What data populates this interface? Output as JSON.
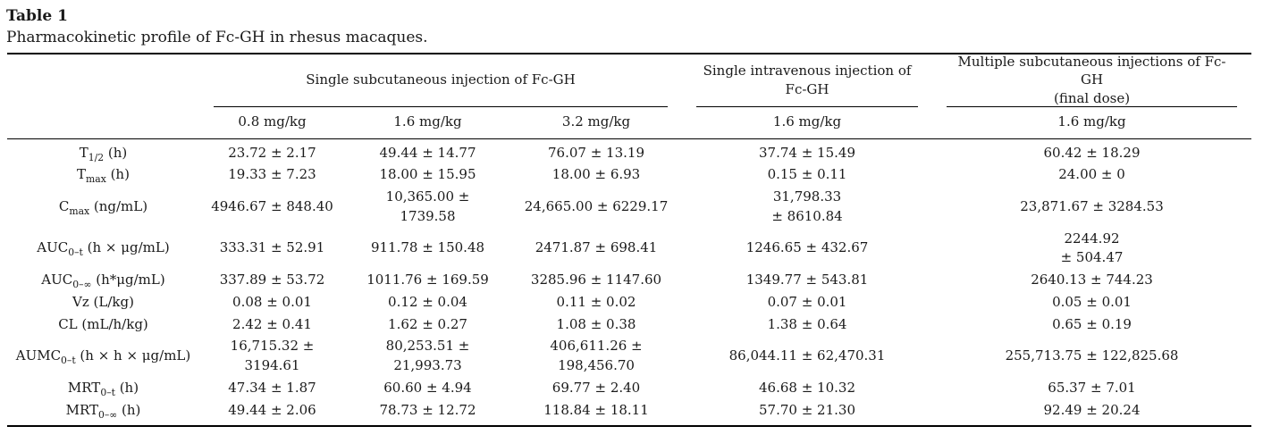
{
  "caption": {
    "label": "Table 1",
    "text": "Pharmacokinetic profile of Fc-GH in rhesus macaques."
  },
  "table": {
    "groups": [
      {
        "title": "Single subcutaneous injection of Fc-GH",
        "span": 3
      },
      {
        "title": "Single intravenous injection of\nFc-GH",
        "span": 1
      },
      {
        "title": "Multiple subcutaneous injections of Fc-GH\n(final dose)",
        "span": 1
      }
    ],
    "dose_headers": [
      "0.8 mg/kg",
      "1.6 mg/kg",
      "3.2 mg/kg",
      "1.6 mg/kg",
      "1.6 mg/kg"
    ],
    "rows": [
      {
        "label": {
          "pre": "T",
          "sub": "1/2",
          "post": " (h)"
        },
        "values": [
          "23.72 ± 2.17",
          "49.44 ± 14.77",
          "76.07 ± 13.19",
          "37.74 ± 15.49",
          "60.42 ± 18.29"
        ]
      },
      {
        "label": {
          "pre": "T",
          "sub": "max",
          "post": " (h)"
        },
        "values": [
          "19.33 ± 7.23",
          "18.00 ± 15.95",
          "18.00 ± 6.93",
          "0.15 ± 0.11",
          "24.00 ± 0"
        ]
      },
      {
        "label": {
          "pre": "C",
          "sub": "max",
          "post": " (ng/mL)"
        },
        "values": [
          "4946.67 ± 848.40",
          "10,365.00 ±\n1739.58",
          "24,665.00 ± 6229.17",
          "31,798.33\n± 8610.84",
          "23,871.67 ± 3284.53"
        ]
      },
      {
        "label": {
          "pre": "AUC",
          "sub": "0–t",
          "post": " (h × μg/mL)"
        },
        "values": [
          "333.31 ± 52.91",
          "911.78 ± 150.48",
          "2471.87 ± 698.41",
          "1246.65 ± 432.67",
          "2244.92\n± 504.47"
        ]
      },
      {
        "label": {
          "pre": "AUC",
          "sub": "0–∞",
          "post": " (h*μg/mL)"
        },
        "values": [
          "337.89 ± 53.72",
          "1011.76 ± 169.59",
          "3285.96 ± 1147.60",
          "1349.77 ± 543.81",
          "2640.13 ± 744.23"
        ]
      },
      {
        "label": {
          "pre": "Vz",
          "sub": "",
          "post": " (L/kg)"
        },
        "values": [
          "0.08 ± 0.01",
          "0.12 ± 0.04",
          "0.11 ± 0.02",
          "0.07 ± 0.01",
          "0.05 ± 0.01"
        ]
      },
      {
        "label": {
          "pre": "CL",
          "sub": "",
          "post": " (mL/h/kg)"
        },
        "values": [
          "2.42 ± 0.41",
          "1.62 ± 0.27",
          "1.08 ± 0.38",
          "1.38 ± 0.64",
          "0.65 ± 0.19"
        ]
      },
      {
        "label": {
          "pre": "AUMC",
          "sub": "0–t",
          "post": " (h × h × μg/mL)"
        },
        "values": [
          "16,715.32 ±\n3194.61",
          "80,253.51 ±\n21,993.73",
          "406,611.26 ±\n198,456.70",
          "86,044.11 ± 62,470.31",
          "255,713.75 ± 122,825.68"
        ]
      },
      {
        "label": {
          "pre": "MRT",
          "sub": "0–t",
          "post": " (h)"
        },
        "values": [
          "47.34 ± 1.87",
          "60.60 ± 4.94",
          "69.77 ± 2.40",
          "46.68 ± 10.32",
          "65.37 ± 7.01"
        ]
      },
      {
        "label": {
          "pre": "MRT",
          "sub": "0–∞",
          "post": " (h)"
        },
        "values": [
          "49.44 ± 2.06",
          "78.73 ± 12.72",
          "118.84 ± 18.11",
          "57.70 ± 21.30",
          "92.49 ± 20.24"
        ]
      }
    ]
  }
}
